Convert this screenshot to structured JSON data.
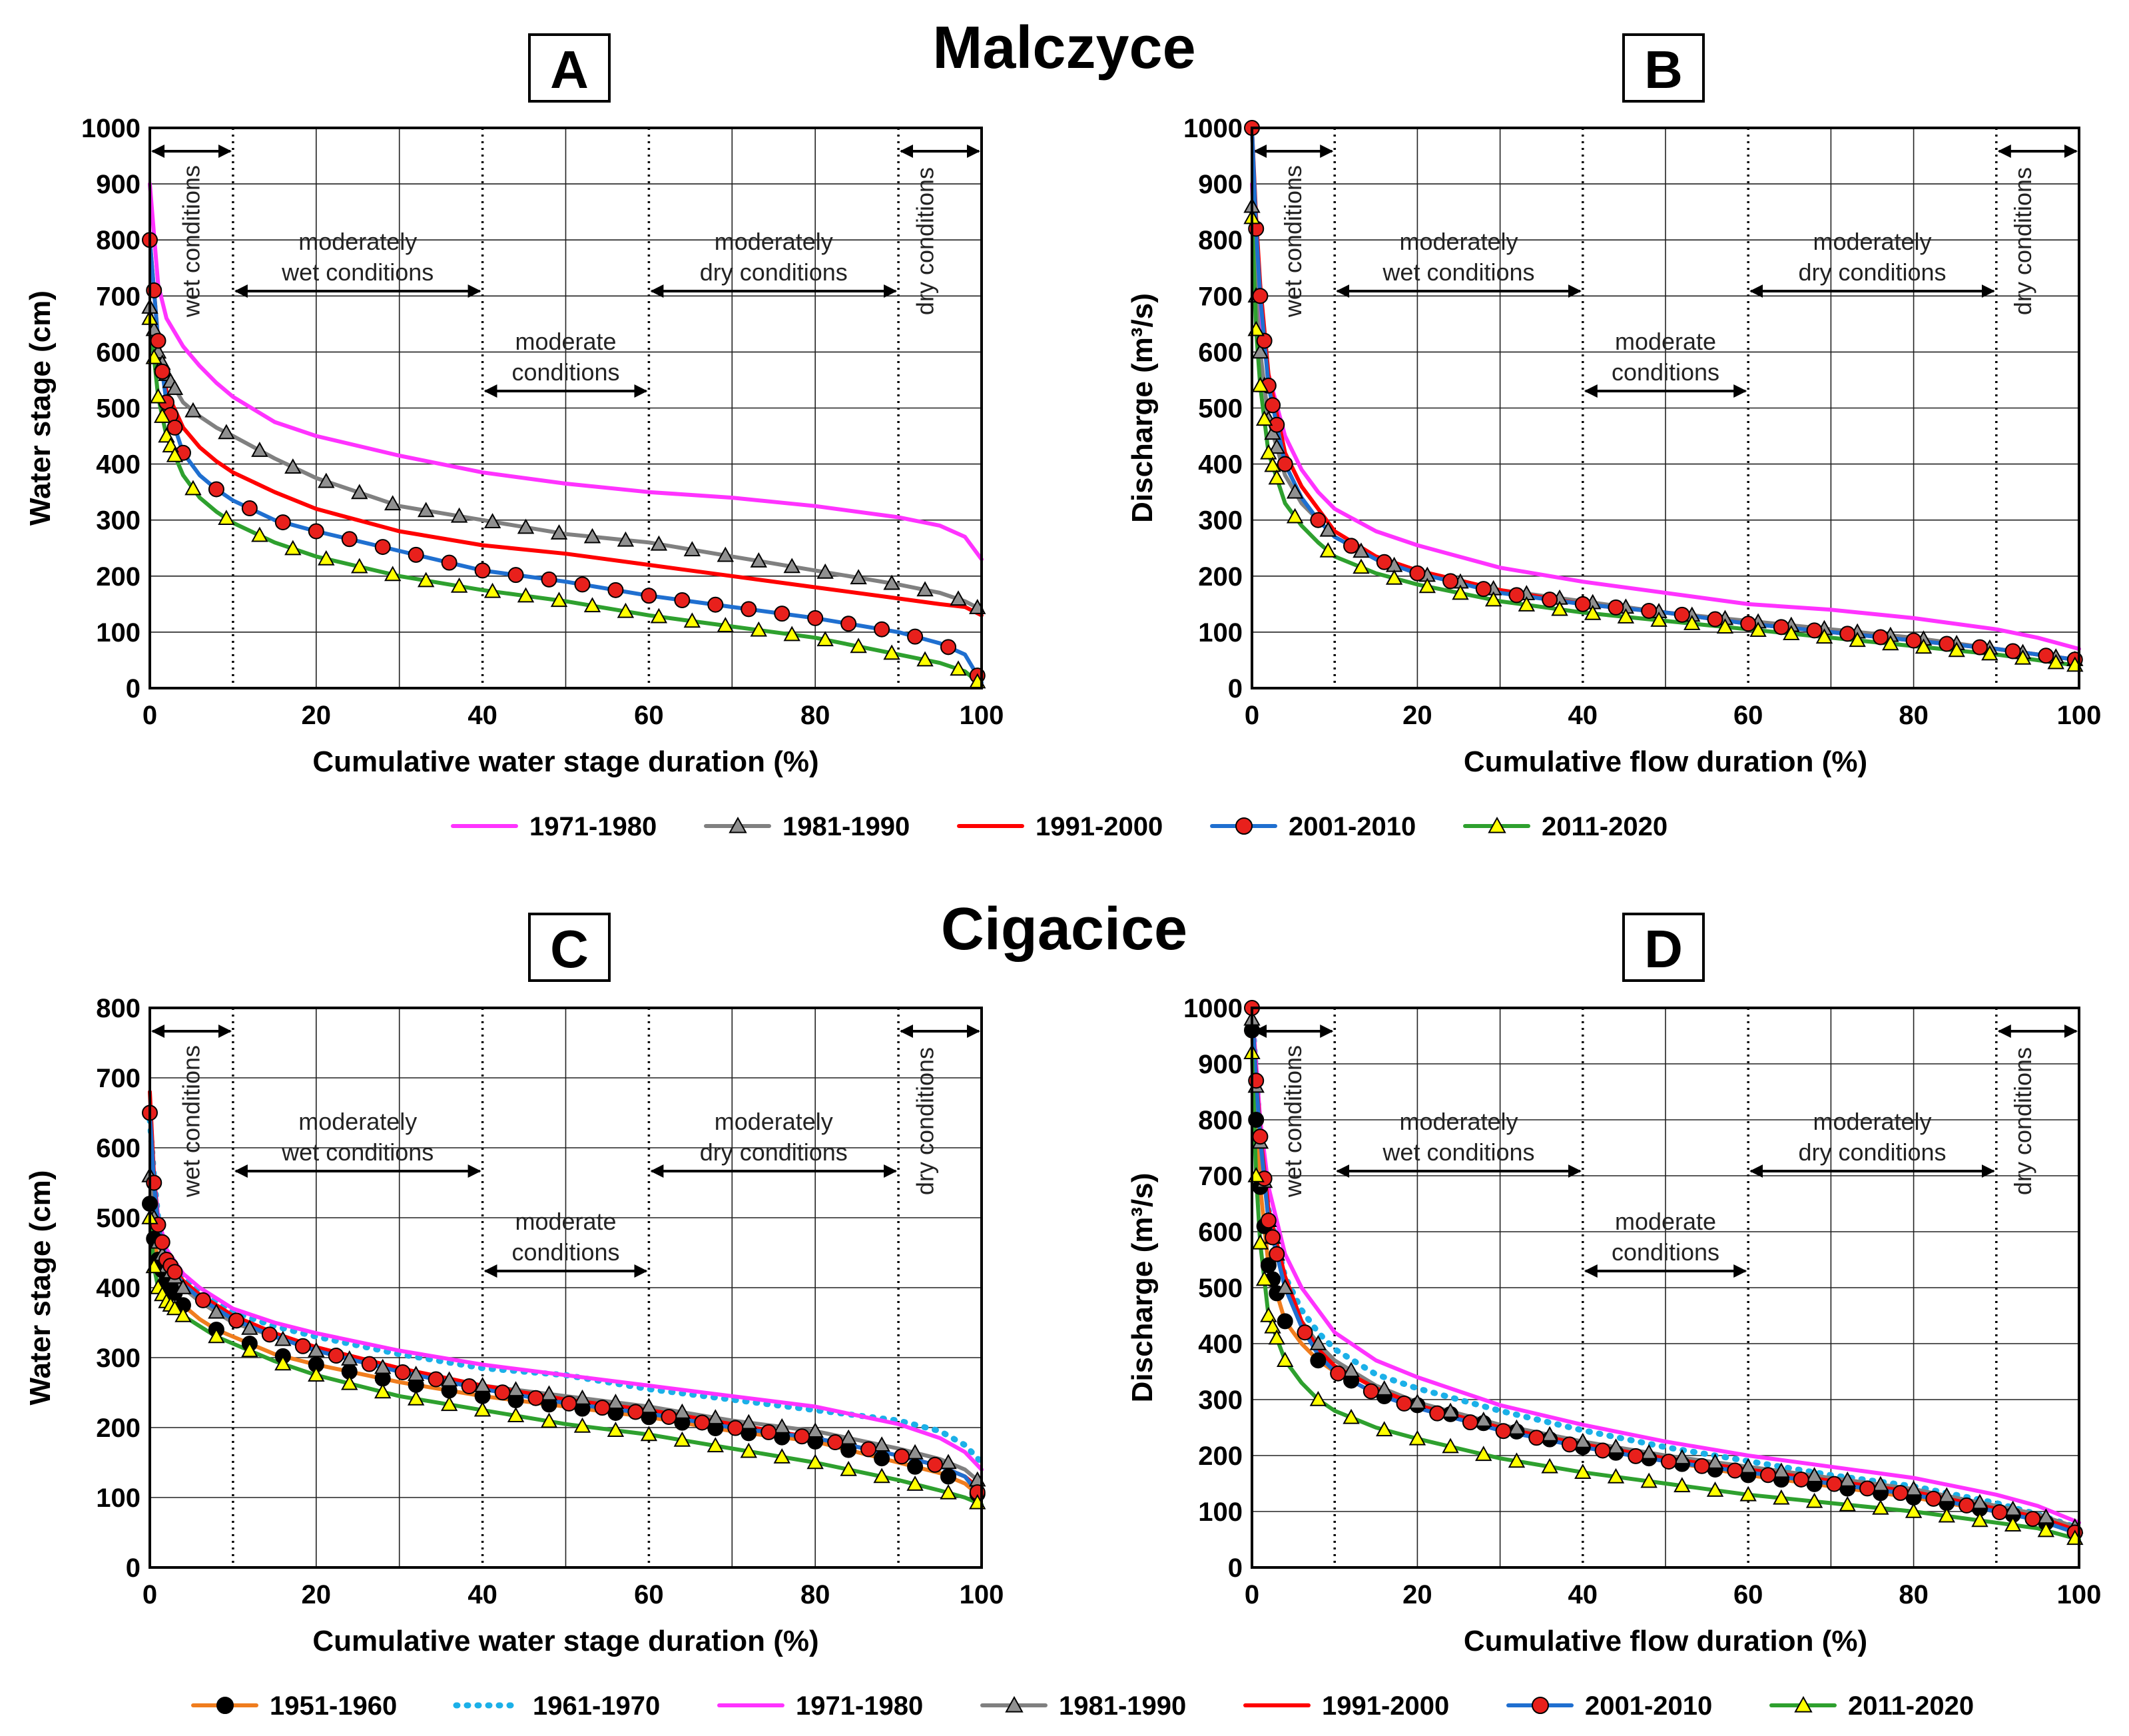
{
  "figure": {
    "station_top": "Malczyce",
    "station_bottom": "Cigacice"
  },
  "zones": {
    "wet": "wet conditions",
    "mod_wet_1": "moderately",
    "mod_wet_2": "wet conditions",
    "moderate_1": "moderate",
    "moderate_2": "conditions",
    "mod_dry_1": "moderately",
    "mod_dry_2": "dry conditions",
    "dry": "dry conditions"
  },
  "legend_top": [
    "1971-1980",
    "1981-1990",
    "1991-2000",
    "2001-2010",
    "2011-2020"
  ],
  "legend_bottom": [
    "1951-1960",
    "1961-1970",
    "1971-1980",
    "1981-1990",
    "1991-2000",
    "2001-2010",
    "2011-2020"
  ],
  "series_styles": {
    "1951-1960": {
      "color": "#f07d1e",
      "dash": "",
      "marker": "dot",
      "marker_fill": "#000000"
    },
    "1961-1970": {
      "color": "#1bb0e8",
      "dash": "2 14",
      "marker": "none",
      "marker_fill": ""
    },
    "1971-1980": {
      "color": "#ff33ff",
      "dash": "",
      "marker": "none",
      "marker_fill": ""
    },
    "1981-1990": {
      "color": "#808080",
      "dash": "",
      "marker": "triangle",
      "marker_fill": "#909090"
    },
    "1991-2000": {
      "color": "#ff0000",
      "dash": "",
      "marker": "none",
      "marker_fill": ""
    },
    "2001-2010": {
      "color": "#1f6fd0",
      "dash": "",
      "marker": "dot",
      "marker_fill": "#e8201c"
    },
    "2011-2020": {
      "color": "#2ea02e",
      "dash": "",
      "marker": "triangle",
      "marker_fill": "#ffff00"
    }
  },
  "chart_data": [
    {
      "panel": "A",
      "type": "line",
      "xlabel": "Cumulative water stage duration (%)",
      "ylabel": "Water stage (cm)",
      "xlim": [
        0,
        100
      ],
      "ylim": [
        0,
        1000
      ],
      "xticks": [
        0,
        20,
        40,
        60,
        80,
        100
      ],
      "yticks": [
        0,
        100,
        200,
        300,
        400,
        500,
        600,
        700,
        800,
        900,
        1000
      ],
      "x": [
        0,
        1,
        2,
        4,
        6,
        8,
        10,
        15,
        20,
        30,
        40,
        50,
        60,
        70,
        80,
        90,
        95,
        98,
        100
      ],
      "series": [
        {
          "name": "1971-1980",
          "values": [
            900,
            720,
            660,
            610,
            575,
            545,
            520,
            475,
            450,
            415,
            385,
            365,
            350,
            340,
            325,
            305,
            290,
            270,
            230
          ]
        },
        {
          "name": "1981-1990",
          "values": [
            680,
            600,
            560,
            510,
            485,
            465,
            450,
            410,
            375,
            325,
            300,
            275,
            260,
            235,
            210,
            185,
            170,
            155,
            140
          ]
        },
        {
          "name": "1991-2000",
          "values": [
            800,
            620,
            530,
            465,
            430,
            405,
            385,
            350,
            320,
            280,
            255,
            240,
            220,
            200,
            180,
            160,
            150,
            145,
            130
          ]
        },
        {
          "name": "2001-2010",
          "values": [
            800,
            620,
            510,
            420,
            380,
            355,
            335,
            300,
            280,
            245,
            210,
            190,
            165,
            145,
            125,
            100,
            80,
            60,
            10
          ]
        },
        {
          "name": "2011-2020",
          "values": [
            660,
            520,
            450,
            380,
            340,
            315,
            295,
            260,
            235,
            200,
            175,
            155,
            130,
            110,
            90,
            60,
            45,
            30,
            5
          ]
        }
      ]
    },
    {
      "panel": "B",
      "type": "line",
      "xlabel": "Cumulative flow duration (%)",
      "ylabel": "Discharge (m³/s)",
      "xlim": [
        0,
        100
      ],
      "ylim": [
        0,
        1000
      ],
      "xticks": [
        0,
        20,
        40,
        60,
        80,
        100
      ],
      "yticks": [
        0,
        100,
        200,
        300,
        400,
        500,
        600,
        700,
        800,
        900,
        1000
      ],
      "x": [
        0,
        0.5,
        1,
        2,
        4,
        6,
        8,
        10,
        15,
        20,
        30,
        40,
        50,
        60,
        70,
        80,
        90,
        95,
        100
      ],
      "series": [
        {
          "name": "1971-1980",
          "values": [
            900,
            750,
            650,
            560,
            450,
            390,
            350,
            320,
            280,
            255,
            215,
            190,
            170,
            150,
            140,
            125,
            105,
            90,
            70
          ]
        },
        {
          "name": "1981-1990",
          "values": [
            860,
            700,
            600,
            480,
            380,
            330,
            300,
            270,
            230,
            205,
            175,
            155,
            135,
            120,
            105,
            90,
            70,
            60,
            50
          ]
        },
        {
          "name": "1991-2000",
          "values": [
            1000,
            840,
            720,
            560,
            420,
            360,
            320,
            280,
            235,
            210,
            175,
            150,
            135,
            115,
            100,
            85,
            70,
            60,
            50
          ]
        },
        {
          "name": "2001-2010",
          "values": [
            1000,
            820,
            700,
            540,
            400,
            340,
            300,
            270,
            230,
            205,
            170,
            150,
            135,
            115,
            100,
            85,
            70,
            60,
            50
          ]
        },
        {
          "name": "2011-2020",
          "values": [
            840,
            640,
            540,
            420,
            330,
            290,
            260,
            235,
            205,
            185,
            155,
            135,
            120,
            105,
            90,
            75,
            60,
            50,
            40
          ]
        }
      ]
    },
    {
      "panel": "C",
      "type": "line",
      "xlabel": "Cumulative water stage duration (%)",
      "ylabel": "Water stage (cm)",
      "xlim": [
        0,
        100
      ],
      "ylim": [
        0,
        800
      ],
      "xticks": [
        0,
        20,
        40,
        60,
        80,
        100
      ],
      "yticks": [
        0,
        100,
        200,
        300,
        400,
        500,
        600,
        700,
        800
      ],
      "x": [
        0,
        0.5,
        1,
        2,
        4,
        6,
        8,
        10,
        15,
        20,
        30,
        40,
        50,
        60,
        70,
        80,
        90,
        95,
        98,
        100
      ],
      "series": [
        {
          "name": "1951-1960",
          "values": [
            520,
            470,
            440,
            410,
            375,
            355,
            340,
            330,
            305,
            290,
            265,
            245,
            230,
            215,
            195,
            180,
            150,
            135,
            120,
            100
          ]
        },
        {
          "name": "1961-1970",
          "values": [
            640,
            560,
            500,
            450,
            415,
            395,
            380,
            365,
            345,
            330,
            305,
            285,
            275,
            255,
            240,
            225,
            210,
            195,
            175,
            150
          ]
        },
        {
          "name": "1971-1980",
          "values": [
            660,
            560,
            500,
            455,
            420,
            400,
            385,
            370,
            350,
            335,
            310,
            290,
            275,
            260,
            245,
            230,
            205,
            185,
            165,
            140
          ]
        },
        {
          "name": "1981-1990",
          "values": [
            560,
            500,
            465,
            430,
            400,
            380,
            365,
            350,
            330,
            310,
            280,
            260,
            245,
            230,
            210,
            195,
            170,
            155,
            140,
            120
          ]
        },
        {
          "name": "1991-2000",
          "values": [
            680,
            560,
            490,
            440,
            410,
            390,
            375,
            360,
            335,
            315,
            285,
            260,
            240,
            225,
            205,
            185,
            160,
            145,
            130,
            110
          ]
        },
        {
          "name": "2001-2010",
          "values": [
            650,
            550,
            490,
            440,
            405,
            385,
            370,
            355,
            330,
            310,
            280,
            255,
            235,
            220,
            200,
            185,
            160,
            145,
            130,
            100
          ]
        },
        {
          "name": "2011-2020",
          "values": [
            500,
            430,
            400,
            380,
            360,
            345,
            330,
            320,
            295,
            275,
            245,
            225,
            205,
            190,
            170,
            150,
            125,
            110,
            100,
            90
          ]
        }
      ]
    },
    {
      "panel": "D",
      "type": "line",
      "xlabel": "Cumulative flow duration (%)",
      "ylabel": "Discharge (m³/s)",
      "xlim": [
        0,
        100
      ],
      "ylim": [
        0,
        1000
      ],
      "xticks": [
        0,
        20,
        40,
        60,
        80,
        100
      ],
      "yticks": [
        0,
        100,
        200,
        300,
        400,
        500,
        600,
        700,
        800,
        900,
        1000
      ],
      "x": [
        0,
        0.5,
        1,
        2,
        4,
        6,
        8,
        10,
        15,
        20,
        30,
        40,
        50,
        60,
        70,
        80,
        90,
        95,
        100
      ],
      "series": [
        {
          "name": "1951-1960",
          "values": [
            960,
            800,
            680,
            540,
            440,
            400,
            370,
            350,
            310,
            290,
            250,
            215,
            190,
            165,
            145,
            125,
            100,
            85,
            60
          ]
        },
        {
          "name": "1961-1970",
          "values": [
            1000,
            880,
            780,
            640,
            520,
            460,
            420,
            390,
            345,
            320,
            280,
            245,
            215,
            190,
            165,
            145,
            115,
            95,
            70
          ]
        },
        {
          "name": "1971-1980",
          "values": [
            1000,
            900,
            800,
            680,
            560,
            500,
            460,
            420,
            370,
            340,
            290,
            255,
            225,
            200,
            180,
            160,
            130,
            110,
            80
          ]
        },
        {
          "name": "1981-1990",
          "values": [
            980,
            860,
            760,
            620,
            500,
            440,
            400,
            370,
            325,
            295,
            255,
            225,
            200,
            180,
            160,
            140,
            110,
            95,
            70
          ]
        },
        {
          "name": "1991-2000",
          "values": [
            1000,
            880,
            780,
            640,
            520,
            440,
            390,
            360,
            320,
            290,
            250,
            220,
            195,
            175,
            155,
            135,
            105,
            90,
            65
          ]
        },
        {
          "name": "2001-2010",
          "values": [
            1000,
            870,
            770,
            620,
            500,
            430,
            380,
            350,
            310,
            285,
            245,
            215,
            190,
            170,
            150,
            130,
            100,
            85,
            60
          ]
        },
        {
          "name": "2011-2020",
          "values": [
            920,
            700,
            580,
            450,
            370,
            330,
            300,
            280,
            250,
            230,
            195,
            170,
            150,
            130,
            115,
            100,
            80,
            70,
            50
          ]
        }
      ]
    }
  ]
}
